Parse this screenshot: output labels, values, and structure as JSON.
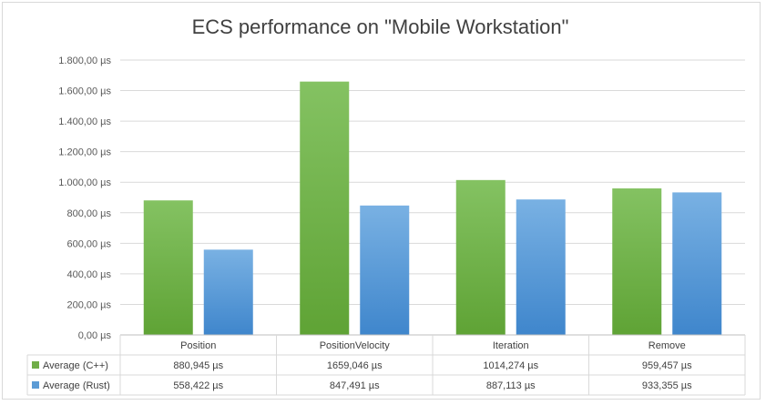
{
  "chart_data": {
    "type": "bar",
    "title": "ECS performance on \"Mobile Workstation\"",
    "categories": [
      "Position",
      "PositionVelocity",
      "Iteration",
      "Remove"
    ],
    "series": [
      {
        "name": "Average (C++)",
        "values": [
          880.945,
          1659.046,
          1014.274,
          959.457
        ],
        "labels": [
          "880,945 µs",
          "1659,046 µs",
          "1014,274 µs",
          "959,457 µs"
        ],
        "color": "#70ad47"
      },
      {
        "name": "Average (Rust)",
        "values": [
          558.422,
          847.491,
          887.113,
          933.355
        ],
        "labels": [
          "558,422 µs",
          "847,491 µs",
          "887,113 µs",
          "933,355 µs"
        ],
        "color": "#5b9bd5"
      }
    ],
    "ylim": [
      0,
      1800
    ],
    "yticks": [
      0,
      200,
      400,
      600,
      800,
      1000,
      1200,
      1400,
      1600,
      1800
    ],
    "ytick_labels": [
      "0,00 µs",
      "200,00 µs",
      "400,00 µs",
      "600,00 µs",
      "800,00 µs",
      "1.000,00 µs",
      "1.200,00 µs",
      "1.400,00 µs",
      "1.600,00 µs",
      "1.800,00 µs"
    ],
    "grid": true,
    "legend": "data-table"
  }
}
